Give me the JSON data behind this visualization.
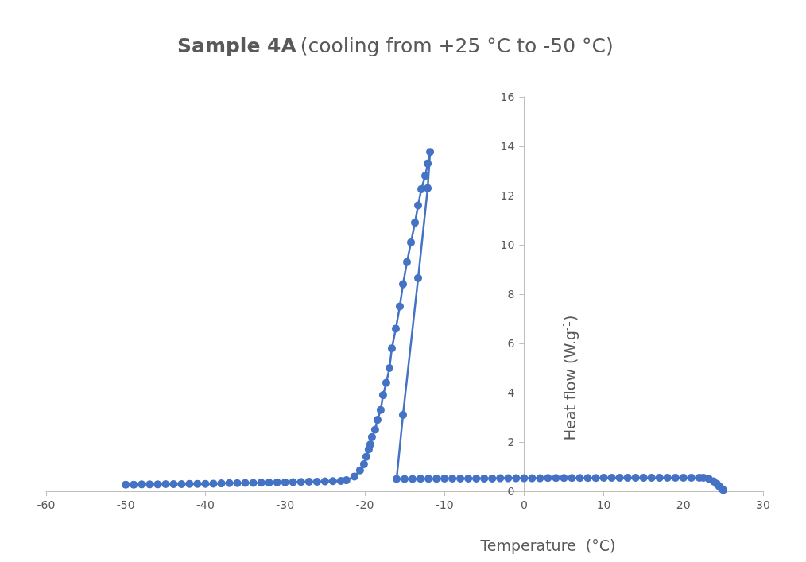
{
  "chart_data": {
    "type": "line",
    "title": "Sample 4A",
    "subtitle": "(cooling from +25 °C to -50 °C)",
    "xlabel": "Temperature  (°C)",
    "ylabel": "Heat flow (W.g$^{-1}$)",
    "xlim": [
      -60,
      30
    ],
    "xticks": [
      -60,
      -50,
      -40,
      -30,
      -20,
      -10,
      0,
      10,
      20,
      30
    ],
    "ylim": [
      0,
      16
    ],
    "yticks": [
      0,
      2,
      4,
      6,
      8,
      10,
      12,
      14,
      16
    ],
    "grid": false,
    "marker": "circle",
    "line_style": "solid",
    "series": [
      {
        "color": "#4472c4",
        "x": [
          25,
          24.8,
          24.5,
          24.2,
          23.8,
          23.2,
          22.5,
          22,
          21,
          20,
          19,
          18,
          17,
          16,
          15,
          14,
          13,
          12,
          11,
          10,
          9,
          8,
          7,
          6,
          5,
          4,
          3,
          2,
          1,
          0,
          -1,
          -2,
          -3,
          -4,
          -5,
          -6,
          -7,
          -8,
          -9,
          -10,
          -11,
          -12,
          -13,
          -14,
          -15,
          -16,
          -15.2,
          -13.3,
          -12.1,
          -11.8,
          -12.1,
          -12.4,
          -12.9,
          -13.3,
          -13.7,
          -14.2,
          -14.7,
          -15.2,
          -15.6,
          -16.1,
          -16.6,
          -16.9,
          -17.3,
          -17.7,
          -18,
          -18.4,
          -18.7,
          -19.1,
          -19.3,
          -19.5,
          -19.8,
          -20.1,
          -20.6,
          -21.3,
          -22.3,
          -23,
          -24,
          -25,
          -26,
          -27,
          -28,
          -29,
          -30,
          -31,
          -32,
          -33,
          -34,
          -35,
          -36,
          -37,
          -38,
          -39,
          -40,
          -41,
          -42,
          -43,
          -44,
          -45,
          -46,
          -47,
          -48,
          -49,
          -50
        ],
        "values": [
          0.05,
          0.1,
          0.2,
          0.3,
          0.4,
          0.5,
          0.55,
          0.55,
          0.55,
          0.55,
          0.55,
          0.55,
          0.55,
          0.55,
          0.55,
          0.55,
          0.55,
          0.55,
          0.55,
          0.55,
          0.54,
          0.54,
          0.54,
          0.54,
          0.54,
          0.54,
          0.54,
          0.53,
          0.53,
          0.53,
          0.53,
          0.53,
          0.53,
          0.52,
          0.52,
          0.52,
          0.52,
          0.52,
          0.52,
          0.52,
          0.51,
          0.51,
          0.51,
          0.5,
          0.5,
          0.5,
          3.1,
          8.65,
          12.3,
          13.77,
          13.3,
          12.8,
          12.26,
          11.6,
          10.9,
          10.1,
          9.3,
          8.4,
          7.5,
          6.6,
          5.8,
          5.0,
          4.4,
          3.9,
          3.3,
          2.9,
          2.5,
          2.2,
          1.9,
          1.7,
          1.4,
          1.1,
          0.85,
          0.6,
          0.45,
          0.42,
          0.41,
          0.4,
          0.39,
          0.39,
          0.38,
          0.37,
          0.36,
          0.36,
          0.35,
          0.35,
          0.34,
          0.34,
          0.33,
          0.33,
          0.32,
          0.31,
          0.3,
          0.3,
          0.3,
          0.29,
          0.29,
          0.29,
          0.28,
          0.28,
          0.28,
          0.27,
          0.27
        ]
      }
    ]
  }
}
